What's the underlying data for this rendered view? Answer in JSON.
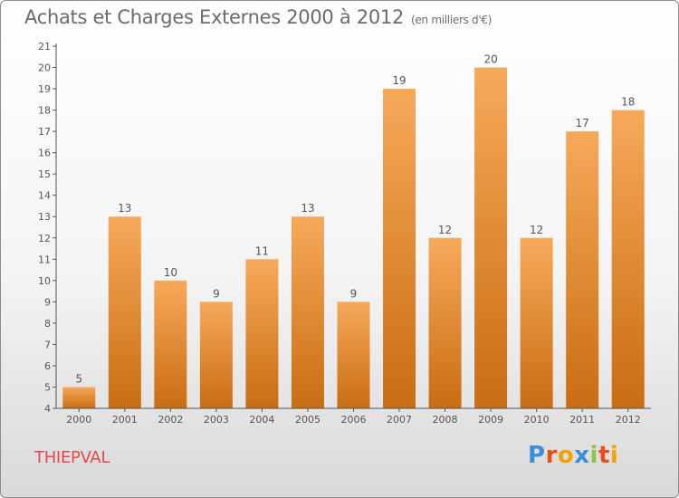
{
  "chart_title": "Achats et Charges Externes 2000 à 2012",
  "chart_unit": "(en milliers d'€)",
  "location": "THIEPVAL",
  "logo": {
    "text": "Proxiti",
    "letters": [
      {
        "ch": "P",
        "color": "#3b8fd6"
      },
      {
        "ch": "r",
        "color": "#e94e1b"
      },
      {
        "ch": "o",
        "color": "#f0a400"
      },
      {
        "ch": "x",
        "color": "#3b8fd6"
      },
      {
        "ch": "i",
        "color": "#8dc63f"
      },
      {
        "ch": "t",
        "color": "#e94e1b"
      },
      {
        "ch": "i",
        "color": "#f0a400"
      }
    ]
  },
  "colors": {
    "bar_top": "#f7a95a",
    "bar_bottom": "#c86d12",
    "axis": "#555555",
    "grid": "#cccccc",
    "title": "#6b6b6b",
    "location": "#e8474f"
  },
  "chart_data": {
    "type": "bar",
    "title": "Achats et Charges Externes 2000 à 2012",
    "subtitle": "(en milliers d'€)",
    "xlabel": "",
    "ylabel": "",
    "categories": [
      "2000",
      "2001",
      "2002",
      "2003",
      "2004",
      "2005",
      "2006",
      "2007",
      "2008",
      "2009",
      "2010",
      "2011",
      "2012"
    ],
    "values": [
      5,
      13,
      10,
      9,
      11,
      13,
      9,
      19,
      12,
      20,
      12,
      17,
      18
    ],
    "ylim": [
      4,
      21
    ],
    "yticks": [
      4,
      5,
      6,
      7,
      8,
      9,
      10,
      11,
      12,
      13,
      14,
      15,
      16,
      17,
      18,
      19,
      20,
      21
    ],
    "grid": false,
    "data_labels": true
  }
}
